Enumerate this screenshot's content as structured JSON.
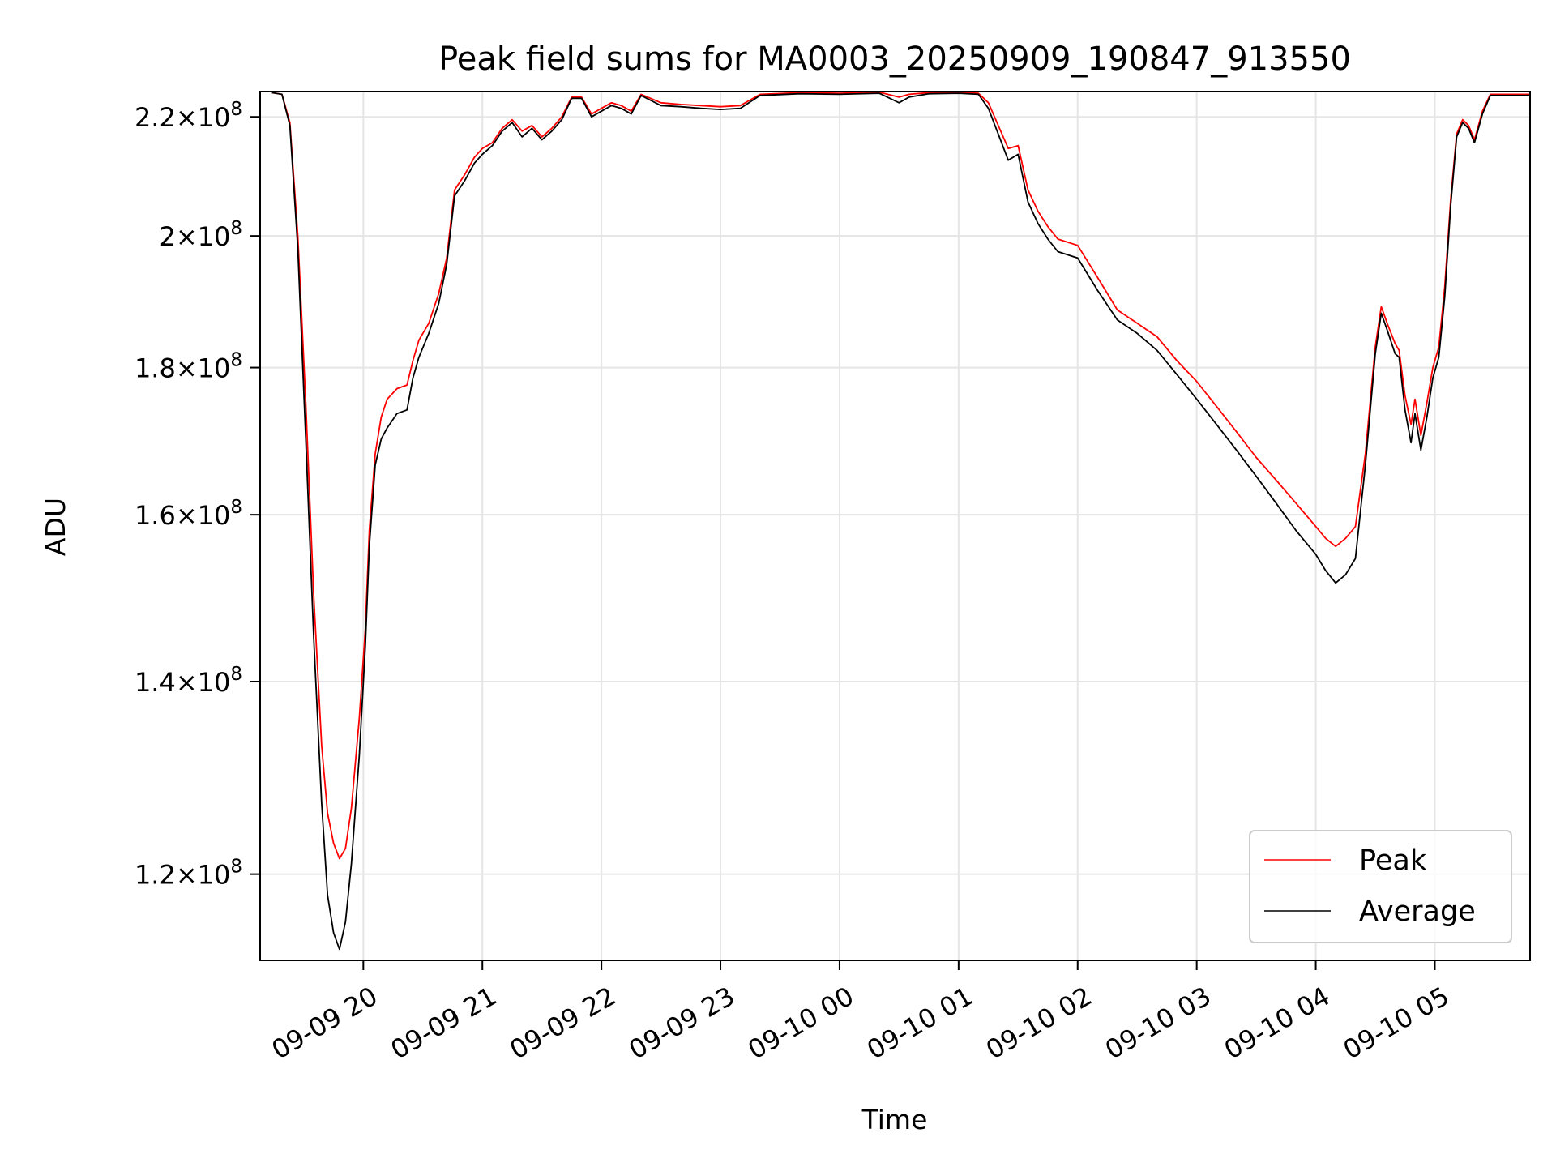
{
  "chart_data": {
    "type": "line",
    "title": "Peak field sums for MA0003_20250909_190847_913550",
    "xlabel": "Time",
    "ylabel": "ADU",
    "x_range": [
      "2025-09-09 19:08",
      "2025-09-10 05:48"
    ],
    "ylim": [
      112000000,
      224500000
    ],
    "y_scale": "log",
    "grid": true,
    "legend_position": "lower-right",
    "x_ticks": [
      {
        "time": "2025-09-09 20:00",
        "label": "09-09 20"
      },
      {
        "time": "2025-09-09 21:00",
        "label": "09-09 21"
      },
      {
        "time": "2025-09-09 22:00",
        "label": "09-09 22"
      },
      {
        "time": "2025-09-09 23:00",
        "label": "09-09 23"
      },
      {
        "time": "2025-09-10 00:00",
        "label": "09-10 00"
      },
      {
        "time": "2025-09-10 01:00",
        "label": "09-10 01"
      },
      {
        "time": "2025-09-10 02:00",
        "label": "09-10 02"
      },
      {
        "time": "2025-09-10 03:00",
        "label": "09-10 03"
      },
      {
        "time": "2025-09-10 04:00",
        "label": "09-10 04"
      },
      {
        "time": "2025-09-10 05:00",
        "label": "09-10 05"
      }
    ],
    "y_ticks": [
      {
        "value": 120000000,
        "mantissa": "1.2",
        "exponent": "8"
      },
      {
        "value": 140000000,
        "mantissa": "1.4",
        "exponent": "8"
      },
      {
        "value": 160000000,
        "mantissa": "1.6",
        "exponent": "8"
      },
      {
        "value": 180000000,
        "mantissa": "1.8",
        "exponent": "8"
      },
      {
        "value": 200000000,
        "mantissa": "2",
        "exponent": "8"
      },
      {
        "value": 220000000,
        "mantissa": "2.2",
        "exponent": "8"
      }
    ],
    "times_symbol": "×",
    "tick_base": "10",
    "series": [
      {
        "name": "Peak",
        "color": "#ff0000",
        "points": [
          [
            "2025-09-09 19:14",
            224300000
          ],
          [
            "2025-09-09 19:19",
            224000000
          ],
          [
            "2025-09-09 19:23",
            219000000
          ],
          [
            "2025-09-09 19:27",
            200000000
          ],
          [
            "2025-09-09 19:31",
            175000000
          ],
          [
            "2025-09-09 19:35",
            150000000
          ],
          [
            "2025-09-09 19:39",
            133000000
          ],
          [
            "2025-09-09 19:42",
            126000000
          ],
          [
            "2025-09-09 19:45",
            123000000
          ],
          [
            "2025-09-09 19:48",
            121500000
          ],
          [
            "2025-09-09 19:51",
            122500000
          ],
          [
            "2025-09-09 19:54",
            126500000
          ],
          [
            "2025-09-09 19:58",
            136000000
          ],
          [
            "2025-09-09 20:01",
            146000000
          ],
          [
            "2025-09-09 20:03",
            158000000
          ],
          [
            "2025-09-09 20:06",
            168000000
          ],
          [
            "2025-09-09 20:09",
            173000000
          ],
          [
            "2025-09-09 20:12",
            175500000
          ],
          [
            "2025-09-09 20:17",
            177000000
          ],
          [
            "2025-09-09 20:22",
            177500000
          ],
          [
            "2025-09-09 20:25",
            181000000
          ],
          [
            "2025-09-09 20:28",
            184000000
          ],
          [
            "2025-09-09 20:33",
            186500000
          ],
          [
            "2025-09-09 20:38",
            191000000
          ],
          [
            "2025-09-09 20:42",
            196500000
          ],
          [
            "2025-09-09 20:46",
            207500000
          ],
          [
            "2025-09-09 20:51",
            210000000
          ],
          [
            "2025-09-09 20:56",
            213000000
          ],
          [
            "2025-09-09 21:00",
            214500000
          ],
          [
            "2025-09-09 21:05",
            215500000
          ],
          [
            "2025-09-09 21:10",
            218000000
          ],
          [
            "2025-09-09 21:15",
            219500000
          ],
          [
            "2025-09-09 21:20",
            217500000
          ],
          [
            "2025-09-09 21:25",
            218500000
          ],
          [
            "2025-09-09 21:30",
            216500000
          ],
          [
            "2025-09-09 21:35",
            218000000
          ],
          [
            "2025-09-09 21:40",
            220000000
          ],
          [
            "2025-09-09 21:45",
            223500000
          ],
          [
            "2025-09-09 21:50",
            223500000
          ],
          [
            "2025-09-09 21:55",
            220500000
          ],
          [
            "2025-09-09 22:00",
            221500000
          ],
          [
            "2025-09-09 22:05",
            222500000
          ],
          [
            "2025-09-09 22:10",
            222000000
          ],
          [
            "2025-09-09 22:15",
            221000000
          ],
          [
            "2025-09-09 22:20",
            224000000
          ],
          [
            "2025-09-09 22:30",
            222500000
          ],
          [
            "2025-09-09 22:40",
            222200000
          ],
          [
            "2025-09-09 22:50",
            222000000
          ],
          [
            "2025-09-09 23:00",
            221800000
          ],
          [
            "2025-09-09 23:10",
            222000000
          ],
          [
            "2025-09-09 23:20",
            224000000
          ],
          [
            "2025-09-09 23:40",
            224300000
          ],
          [
            "2025-09-10 00:00",
            224200000
          ],
          [
            "2025-09-10 00:20",
            224400000
          ],
          [
            "2025-09-10 00:30",
            223500000
          ],
          [
            "2025-09-10 00:35",
            224000000
          ],
          [
            "2025-09-10 00:45",
            224300000
          ],
          [
            "2025-09-10 01:00",
            224400000
          ],
          [
            "2025-09-10 01:10",
            224200000
          ],
          [
            "2025-09-10 01:15",
            222500000
          ],
          [
            "2025-09-10 01:20",
            218500000
          ],
          [
            "2025-09-10 01:25",
            214500000
          ],
          [
            "2025-09-10 01:30",
            215000000
          ],
          [
            "2025-09-10 01:35",
            207500000
          ],
          [
            "2025-09-10 01:40",
            204000000
          ],
          [
            "2025-09-10 01:45",
            201500000
          ],
          [
            "2025-09-10 01:50",
            199500000
          ],
          [
            "2025-09-10 02:00",
            198500000
          ],
          [
            "2025-09-10 02:10",
            193500000
          ],
          [
            "2025-09-10 02:20",
            188500000
          ],
          [
            "2025-09-10 02:30",
            186500000
          ],
          [
            "2025-09-10 02:40",
            184500000
          ],
          [
            "2025-09-10 02:50",
            181000000
          ],
          [
            "2025-09-10 03:00",
            178000000
          ],
          [
            "2025-09-10 03:10",
            174500000
          ],
          [
            "2025-09-10 03:20",
            171000000
          ],
          [
            "2025-09-10 03:30",
            167500000
          ],
          [
            "2025-09-10 03:40",
            164500000
          ],
          [
            "2025-09-10 03:50",
            161500000
          ],
          [
            "2025-09-10 04:00",
            158500000
          ],
          [
            "2025-09-10 04:05",
            157000000
          ],
          [
            "2025-09-10 04:10",
            156000000
          ],
          [
            "2025-09-10 04:15",
            157000000
          ],
          [
            "2025-09-10 04:20",
            158500000
          ],
          [
            "2025-09-10 04:25",
            168000000
          ],
          [
            "2025-09-10 04:30",
            183000000
          ],
          [
            "2025-09-10 04:33",
            189000000
          ],
          [
            "2025-09-10 04:36",
            186500000
          ],
          [
            "2025-09-10 04:40",
            183500000
          ],
          [
            "2025-09-10 04:42",
            182500000
          ],
          [
            "2025-09-10 04:45",
            176000000
          ],
          [
            "2025-09-10 04:48",
            172000000
          ],
          [
            "2025-09-10 04:50",
            175500000
          ],
          [
            "2025-09-10 04:53",
            170500000
          ],
          [
            "2025-09-10 04:56",
            175000000
          ],
          [
            "2025-09-10 04:59",
            180000000
          ],
          [
            "2025-09-10 05:02",
            183000000
          ],
          [
            "2025-09-10 05:05",
            192000000
          ],
          [
            "2025-09-10 05:08",
            206000000
          ],
          [
            "2025-09-10 05:11",
            217000000
          ],
          [
            "2025-09-10 05:14",
            219500000
          ],
          [
            "2025-09-10 05:17",
            218500000
          ],
          [
            "2025-09-10 05:20",
            216000000
          ],
          [
            "2025-09-10 05:24",
            221000000
          ],
          [
            "2025-09-10 05:28",
            224000000
          ],
          [
            "2025-09-10 05:48",
            224000000
          ]
        ]
      },
      {
        "name": "Average",
        "color": "#000000",
        "points": [
          [
            "2025-09-09 19:14",
            224300000
          ],
          [
            "2025-09-09 19:19",
            224000000
          ],
          [
            "2025-09-09 19:23",
            218500000
          ],
          [
            "2025-09-09 19:27",
            198000000
          ],
          [
            "2025-09-09 19:31",
            170000000
          ],
          [
            "2025-09-09 19:35",
            145000000
          ],
          [
            "2025-09-09 19:39",
            127000000
          ],
          [
            "2025-09-09 19:42",
            118000000
          ],
          [
            "2025-09-09 19:45",
            114500000
          ],
          [
            "2025-09-09 19:48",
            113000000
          ],
          [
            "2025-09-09 19:51",
            115500000
          ],
          [
            "2025-09-09 19:54",
            121000000
          ],
          [
            "2025-09-09 19:58",
            132000000
          ],
          [
            "2025-09-09 20:01",
            144000000
          ],
          [
            "2025-09-09 20:03",
            156000000
          ],
          [
            "2025-09-09 20:06",
            166500000
          ],
          [
            "2025-09-09 20:09",
            170000000
          ],
          [
            "2025-09-09 20:12",
            171500000
          ],
          [
            "2025-09-09 20:17",
            173500000
          ],
          [
            "2025-09-09 20:22",
            174000000
          ],
          [
            "2025-09-09 20:25",
            178500000
          ],
          [
            "2025-09-09 20:28",
            181500000
          ],
          [
            "2025-09-09 20:33",
            185000000
          ],
          [
            "2025-09-09 20:38",
            189500000
          ],
          [
            "2025-09-09 20:42",
            195500000
          ],
          [
            "2025-09-09 20:46",
            206500000
          ],
          [
            "2025-09-09 20:51",
            209000000
          ],
          [
            "2025-09-09 20:56",
            212000000
          ],
          [
            "2025-09-09 21:00",
            213500000
          ],
          [
            "2025-09-09 21:05",
            215000000
          ],
          [
            "2025-09-09 21:10",
            217500000
          ],
          [
            "2025-09-09 21:15",
            219000000
          ],
          [
            "2025-09-09 21:20",
            216500000
          ],
          [
            "2025-09-09 21:25",
            218000000
          ],
          [
            "2025-09-09 21:30",
            216000000
          ],
          [
            "2025-09-09 21:35",
            217500000
          ],
          [
            "2025-09-09 21:40",
            219500000
          ],
          [
            "2025-09-09 21:45",
            223300000
          ],
          [
            "2025-09-09 21:50",
            223300000
          ],
          [
            "2025-09-09 21:55",
            220000000
          ],
          [
            "2025-09-09 22:00",
            221000000
          ],
          [
            "2025-09-09 22:05",
            222000000
          ],
          [
            "2025-09-09 22:10",
            221500000
          ],
          [
            "2025-09-09 22:15",
            220500000
          ],
          [
            "2025-09-09 22:20",
            223800000
          ],
          [
            "2025-09-09 22:30",
            222000000
          ],
          [
            "2025-09-09 22:40",
            221800000
          ],
          [
            "2025-09-09 22:50",
            221500000
          ],
          [
            "2025-09-09 23:00",
            221300000
          ],
          [
            "2025-09-09 23:10",
            221500000
          ],
          [
            "2025-09-09 23:20",
            223800000
          ],
          [
            "2025-09-09 23:40",
            224100000
          ],
          [
            "2025-09-10 00:00",
            224000000
          ],
          [
            "2025-09-10 00:20",
            224200000
          ],
          [
            "2025-09-10 00:30",
            222500000
          ],
          [
            "2025-09-10 00:35",
            223500000
          ],
          [
            "2025-09-10 00:45",
            224100000
          ],
          [
            "2025-09-10 01:00",
            224200000
          ],
          [
            "2025-09-10 01:10",
            224000000
          ],
          [
            "2025-09-10 01:15",
            221500000
          ],
          [
            "2025-09-10 01:20",
            217000000
          ],
          [
            "2025-09-10 01:25",
            212500000
          ],
          [
            "2025-09-10 01:30",
            213500000
          ],
          [
            "2025-09-10 01:35",
            205500000
          ],
          [
            "2025-09-10 01:40",
            202000000
          ],
          [
            "2025-09-10 01:45",
            199500000
          ],
          [
            "2025-09-10 01:50",
            197500000
          ],
          [
            "2025-09-10 02:00",
            196500000
          ],
          [
            "2025-09-10 02:10",
            191500000
          ],
          [
            "2025-09-10 02:20",
            187000000
          ],
          [
            "2025-09-10 02:30",
            185000000
          ],
          [
            "2025-09-10 02:40",
            182500000
          ],
          [
            "2025-09-10 02:50",
            179000000
          ],
          [
            "2025-09-10 03:00",
            175500000
          ],
          [
            "2025-09-10 03:10",
            172000000
          ],
          [
            "2025-09-10 03:20",
            168500000
          ],
          [
            "2025-09-10 03:30",
            165000000
          ],
          [
            "2025-09-10 03:40",
            161500000
          ],
          [
            "2025-09-10 03:50",
            158000000
          ],
          [
            "2025-09-10 04:00",
            155000000
          ],
          [
            "2025-09-10 04:05",
            153000000
          ],
          [
            "2025-09-10 04:10",
            151500000
          ],
          [
            "2025-09-10 04:15",
            152500000
          ],
          [
            "2025-09-10 04:20",
            154500000
          ],
          [
            "2025-09-10 04:25",
            166500000
          ],
          [
            "2025-09-10 04:30",
            182000000
          ],
          [
            "2025-09-10 04:33",
            188000000
          ],
          [
            "2025-09-10 04:36",
            185500000
          ],
          [
            "2025-09-10 04:40",
            182000000
          ],
          [
            "2025-09-10 04:42",
            181500000
          ],
          [
            "2025-09-10 04:45",
            174000000
          ],
          [
            "2025-09-10 04:48",
            169500000
          ],
          [
            "2025-09-10 04:50",
            173500000
          ],
          [
            "2025-09-10 04:53",
            168500000
          ],
          [
            "2025-09-10 04:56",
            173000000
          ],
          [
            "2025-09-10 04:59",
            178500000
          ],
          [
            "2025-09-10 05:02",
            181500000
          ],
          [
            "2025-09-10 05:05",
            190500000
          ],
          [
            "2025-09-10 05:08",
            205000000
          ],
          [
            "2025-09-10 05:11",
            216500000
          ],
          [
            "2025-09-10 05:14",
            219000000
          ],
          [
            "2025-09-10 05:17",
            218000000
          ],
          [
            "2025-09-10 05:20",
            215500000
          ],
          [
            "2025-09-10 05:24",
            220500000
          ],
          [
            "2025-09-10 05:28",
            223800000
          ],
          [
            "2025-09-10 05:48",
            223800000
          ]
        ]
      }
    ]
  }
}
